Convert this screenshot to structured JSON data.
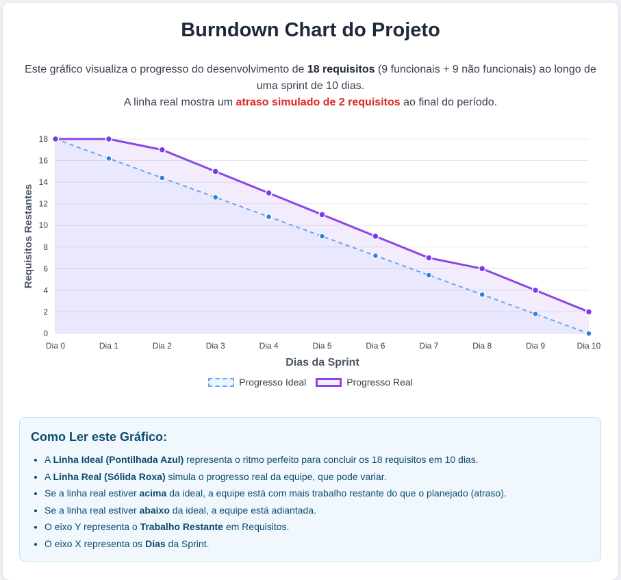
{
  "header": {
    "title": "Burndown Chart do Projeto",
    "intro_1a": "Este gráfico visualiza o progresso do desenvolvimento de ",
    "intro_1b": "18 requisitos",
    "intro_1c": " (9 funcionais + 9 não funcionais) ao longo de uma sprint de 10 dias.",
    "intro_2a": "A linha real mostra um ",
    "intro_2b": "atraso simulado de 2 requisitos",
    "intro_2c": " ao final do período."
  },
  "chart_data": {
    "type": "line",
    "categories": [
      "Dia 0",
      "Dia 1",
      "Dia 2",
      "Dia 3",
      "Dia 4",
      "Dia 5",
      "Dia 6",
      "Dia 7",
      "Dia 8",
      "Dia 9",
      "Dia 10"
    ],
    "series": [
      {
        "name": "Progresso Ideal",
        "style": "dashed",
        "color": "#60a5fa",
        "values": [
          18,
          16.2,
          14.4,
          12.6,
          10.8,
          9,
          7.2,
          5.4,
          3.6,
          1.8,
          0
        ]
      },
      {
        "name": "Progresso Real",
        "style": "solid",
        "color": "#8b46e4",
        "values": [
          18,
          18,
          17,
          15,
          13,
          11,
          9,
          7,
          6,
          4,
          2
        ]
      }
    ],
    "xlabel": "Dias da Sprint",
    "ylabel": "Requisitos Restantes",
    "ylim": [
      0,
      18
    ],
    "yticks": [
      0,
      2,
      4,
      6,
      8,
      10,
      12,
      14,
      16,
      18
    ],
    "grid": true,
    "legend_position": "bottom"
  },
  "info": {
    "title": "Como Ler este Gráfico:",
    "items": [
      {
        "a": "A ",
        "b": "Linha Ideal (Pontilhada Azul)",
        "c": " representa o ritmo perfeito para concluir os 18 requisitos em 10 dias."
      },
      {
        "a": "A ",
        "b": "Linha Real (Sólida Roxa)",
        "c": " simula o progresso real da equipe, que pode variar."
      },
      {
        "a": "Se a linha real estiver ",
        "b": "acima",
        "c": " da ideal, a equipe está com mais trabalho restante do que o planejado (atraso)."
      },
      {
        "a": "Se a linha real estiver ",
        "b": "abaixo",
        "c": " da ideal, a equipe está adiantada."
      },
      {
        "a": "O eixo Y representa o ",
        "b": "Trabalho Restante",
        "c": " em Requisitos."
      },
      {
        "a": "O eixo X representa os ",
        "b": "Dias",
        "c": " da Sprint."
      }
    ]
  }
}
